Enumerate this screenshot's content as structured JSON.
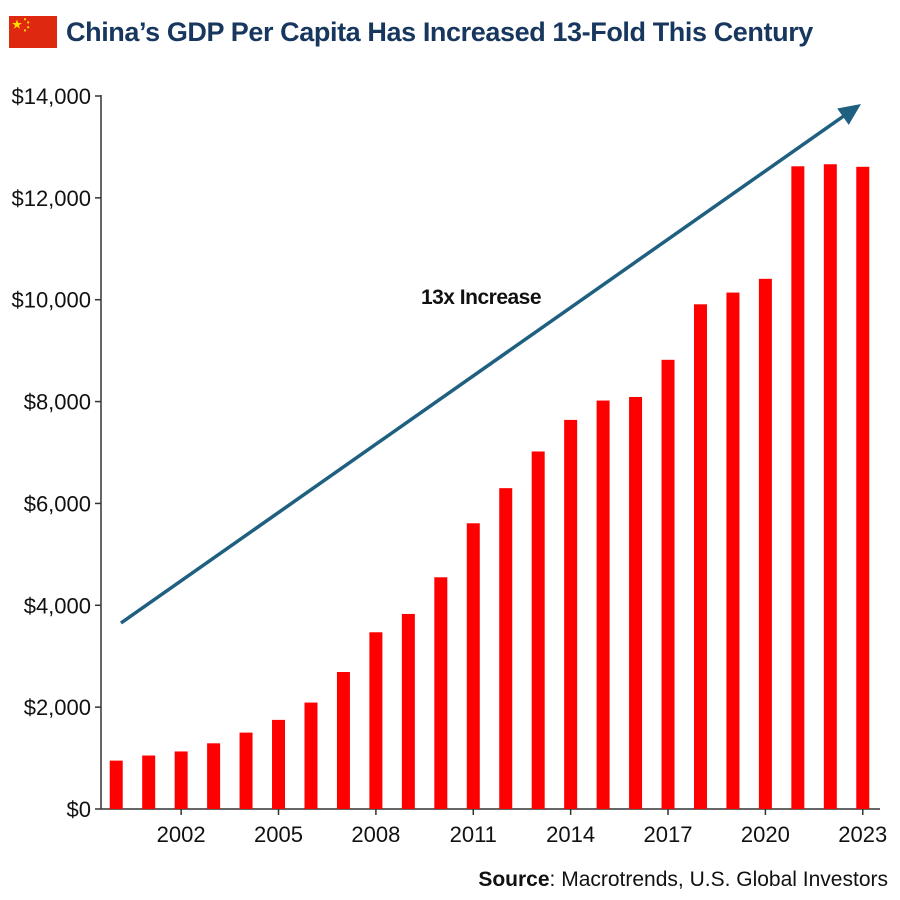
{
  "header": {
    "title": "China’s GDP Per Capita Has Increased 13-Fold This Century",
    "flag_icon": "china-flag-icon"
  },
  "chart_data": {
    "type": "bar",
    "title": "China’s GDP Per Capita Has Increased 13-Fold This Century",
    "xlabel": "",
    "ylabel": "",
    "categories": [
      "2000",
      "2001",
      "2002",
      "2003",
      "2004",
      "2005",
      "2006",
      "2007",
      "2008",
      "2009",
      "2010",
      "2011",
      "2012",
      "2013",
      "2014",
      "2015",
      "2016",
      "2017",
      "2018",
      "2019",
      "2020",
      "2021",
      "2022",
      "2023"
    ],
    "x_tick_labels": [
      "2002",
      "2005",
      "2008",
      "2011",
      "2014",
      "2017",
      "2020",
      "2023"
    ],
    "values": [
      950,
      1050,
      1130,
      1290,
      1500,
      1750,
      2090,
      2690,
      3470,
      3830,
      4550,
      5610,
      6300,
      7020,
      7640,
      8020,
      8090,
      8820,
      9910,
      10140,
      10410,
      12620,
      12660,
      12610
    ],
    "y_tick_labels": [
      "$0",
      "$2,000",
      "$4,000",
      "$6,000",
      "$8,000",
      "$10,000",
      "$12,000",
      "$14,000"
    ],
    "y_ticks": [
      0,
      2000,
      4000,
      6000,
      8000,
      10000,
      12000,
      14000
    ],
    "ylim": [
      0,
      14000
    ],
    "grid": false,
    "bar_color": "#ff0000",
    "annotation": {
      "text": "13x Increase",
      "arrow_color": "#1f5f80"
    }
  },
  "source": {
    "label": "Source",
    "text": ": Macrotrends, U.S. Global Investors"
  }
}
